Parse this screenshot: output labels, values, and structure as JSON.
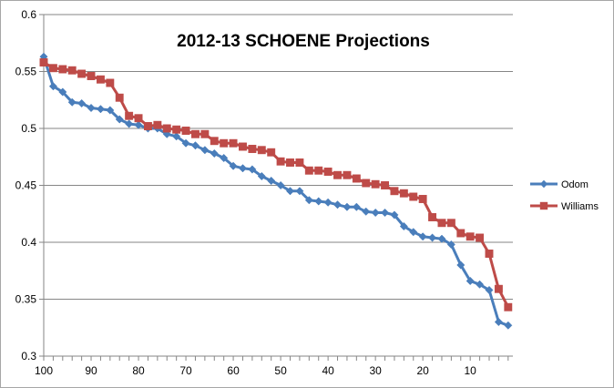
{
  "chart_data": {
    "type": "line",
    "title": "2012-13 SCHOENE Projections",
    "xlabel": "",
    "ylabel": "",
    "xlim": [
      100,
      1
    ],
    "x_reversed": true,
    "ylim": [
      0.3,
      0.6
    ],
    "y_ticks": [
      "0.3",
      "0.35",
      "0.4",
      "0.45",
      "0.5",
      "0.55",
      "0.6"
    ],
    "x_ticks": [
      "100",
      "90",
      "80",
      "70",
      "60",
      "50",
      "40",
      "30",
      "20",
      "10"
    ],
    "grid": "horizontal",
    "legend_position": "right",
    "x": [
      100,
      98,
      96,
      94,
      92,
      90,
      88,
      86,
      84,
      82,
      80,
      78,
      76,
      74,
      72,
      70,
      68,
      66,
      64,
      62,
      60,
      58,
      56,
      54,
      52,
      50,
      48,
      46,
      44,
      42,
      40,
      38,
      36,
      34,
      32,
      30,
      28,
      26,
      24,
      22,
      20,
      18,
      16,
      14,
      12,
      10,
      8,
      6,
      4,
      2
    ],
    "series": [
      {
        "name": "Odom",
        "color": "#4a7ebb",
        "marker": "diamond",
        "values": [
          0.563,
          0.537,
          0.532,
          0.523,
          0.522,
          0.518,
          0.517,
          0.516,
          0.508,
          0.504,
          0.503,
          0.5,
          0.5,
          0.495,
          0.493,
          0.487,
          0.485,
          0.481,
          0.478,
          0.474,
          0.467,
          0.465,
          0.464,
          0.458,
          0.454,
          0.45,
          0.445,
          0.445,
          0.437,
          0.436,
          0.435,
          0.433,
          0.431,
          0.431,
          0.427,
          0.426,
          0.426,
          0.424,
          0.414,
          0.409,
          0.405,
          0.404,
          0.403,
          0.398,
          0.38,
          0.366,
          0.363,
          0.358,
          0.33,
          0.327
        ]
      },
      {
        "name": "Williams",
        "color": "#be4b48",
        "marker": "square",
        "values": [
          0.558,
          0.553,
          0.552,
          0.551,
          0.548,
          0.546,
          0.543,
          0.54,
          0.527,
          0.511,
          0.509,
          0.502,
          0.503,
          0.5,
          0.499,
          0.498,
          0.495,
          0.495,
          0.489,
          0.487,
          0.487,
          0.484,
          0.482,
          0.481,
          0.479,
          0.471,
          0.47,
          0.47,
          0.463,
          0.463,
          0.462,
          0.459,
          0.459,
          0.456,
          0.452,
          0.451,
          0.45,
          0.445,
          0.443,
          0.44,
          0.438,
          0.422,
          0.417,
          0.417,
          0.408,
          0.405,
          0.404,
          0.39,
          0.359,
          0.343
        ]
      }
    ]
  }
}
